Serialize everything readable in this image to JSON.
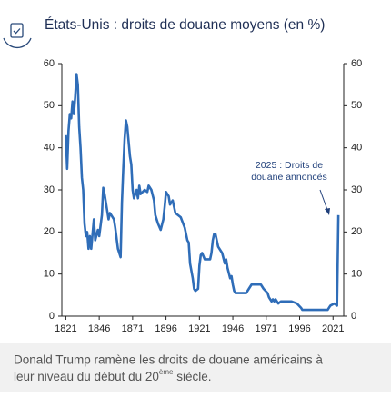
{
  "chart_data": {
    "type": "line",
    "title": "États-Unis : droits de douane moyens (en %)",
    "annotation": [
      "2025 : Droits de",
      "douane annoncés"
    ],
    "caption": [
      "Donald Trump ramène les droits de douane américains à",
      "leur niveau du début du 20",
      "ème",
      " siècle."
    ],
    "xlim": [
      1818,
      2029
    ],
    "xticks": [
      1821,
      1846,
      1871,
      1896,
      1921,
      1946,
      1971,
      1996,
      2021
    ],
    "ylim": [
      0,
      60
    ],
    "yticks": [
      0,
      10,
      20,
      30,
      40,
      50,
      60
    ],
    "y2lim": [
      0,
      60
    ],
    "y2ticks": [
      0,
      10,
      20,
      30,
      40,
      50,
      60
    ],
    "series": [
      {
        "color": "#2f6db8",
        "x": [
          1821,
          1822,
          1823,
          1824,
          1825,
          1826,
          1827,
          1828,
          1829,
          1830,
          1831,
          1832,
          1833,
          1834,
          1835,
          1836,
          1837,
          1838,
          1839,
          1840,
          1842,
          1843,
          1845,
          1846,
          1848,
          1849,
          1850,
          1852,
          1853,
          1854,
          1857,
          1858,
          1860,
          1862,
          1863,
          1864,
          1865,
          1866,
          1867,
          1869,
          1870,
          1871,
          1872,
          1874,
          1875,
          1876,
          1877,
          1880,
          1882,
          1883,
          1885,
          1887,
          1888,
          1890,
          1892,
          1894,
          1895,
          1896,
          1898,
          1899,
          1901,
          1903,
          1907,
          1910,
          1912,
          1913,
          1914,
          1916,
          1917,
          1918,
          1920,
          1921,
          1922,
          1923,
          1925,
          1929,
          1930,
          1931,
          1932,
          1933,
          1935,
          1938,
          1940,
          1941,
          1942,
          1944,
          1945,
          1946,
          1947,
          1948,
          1956,
          1958,
          1960,
          1967,
          1969,
          1972,
          1973,
          1975,
          1976,
          1977,
          1978,
          1980,
          1982,
          1990,
          1994,
          1997,
          1998,
          2017,
          2018,
          2019,
          2022,
          2024,
          2025
        ],
        "values": [
          43,
          35,
          44,
          48,
          47,
          51,
          48,
          52,
          57.5,
          55,
          45,
          40,
          33,
          30,
          22,
          19,
          20,
          16,
          19,
          16,
          23,
          18,
          20.5,
          19,
          24,
          30.5,
          29,
          25,
          23,
          24.5,
          23,
          21,
          16,
          14,
          27,
          35,
          42,
          46.5,
          45,
          38,
          36,
          30,
          28,
          30,
          28,
          31,
          29,
          30,
          29.5,
          31,
          30,
          27.5,
          24,
          22,
          20.5,
          23,
          26,
          29.5,
          28.5,
          26.5,
          27.5,
          24.5,
          23.5,
          21,
          18,
          17.5,
          12.5,
          9,
          6.5,
          6,
          6.5,
          12,
          14.5,
          15,
          13.5,
          13.5,
          15,
          18,
          19.5,
          19.5,
          16.5,
          15,
          12.5,
          13.5,
          11.5,
          9,
          9.5,
          7.5,
          6,
          5.5,
          5.5,
          6.5,
          7.5,
          7.5,
          6.5,
          5.5,
          4.5,
          3.5,
          4,
          3.5,
          4,
          3,
          3.5,
          3.5,
          3,
          2,
          1.5,
          1.5,
          2,
          2.5,
          3,
          2.5,
          24
        ]
      }
    ]
  }
}
